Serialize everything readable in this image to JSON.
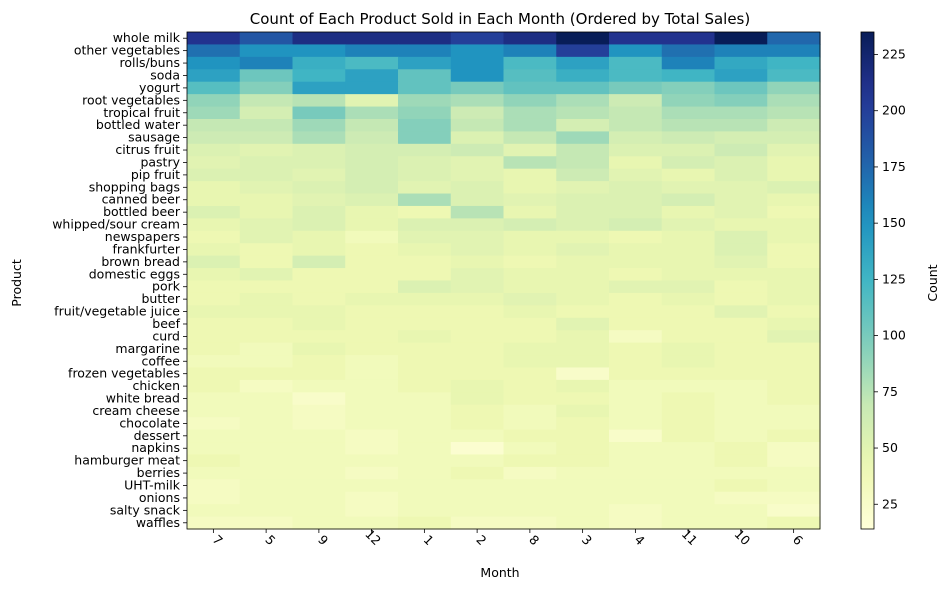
{
  "chart_data": {
    "type": "heatmap",
    "title": "Count of Each Product Sold in Each Month (Ordered by Total Sales)",
    "xlabel": "Month",
    "ylabel": "Product",
    "colorbar_label": "Count",
    "colormap": "YlGnBu",
    "value_range": [
      14,
      235
    ],
    "colorbar_ticks": [
      25,
      50,
      75,
      100,
      125,
      150,
      175,
      200,
      225
    ],
    "months": [
      "7",
      "5",
      "9",
      "12",
      "1",
      "2",
      "8",
      "3",
      "4",
      "11",
      "10",
      "6"
    ],
    "products": [
      "whole milk",
      "other vegetables",
      "rolls/buns",
      "soda",
      "yogurt",
      "root vegetables",
      "tropical fruit",
      "bottled water",
      "sausage",
      "citrus fruit",
      "pastry",
      "pip fruit",
      "shopping bags",
      "canned beer",
      "bottled beer",
      "whipped/sour cream",
      "newspapers",
      "frankfurter",
      "brown bread",
      "domestic eggs",
      "pork",
      "butter",
      "fruit/vegetable juice",
      "beef",
      "curd",
      "margarine",
      "coffee",
      "frozen vegetables",
      "chicken",
      "white bread",
      "cream cheese ",
      "chocolate",
      "dessert",
      "napkins",
      "hamburger meat",
      "berries",
      "UHT-milk",
      "onions",
      "salty snack",
      "waffles"
    ],
    "values": [
      [
        210,
        185,
        215,
        215,
        215,
        200,
        215,
        235,
        210,
        210,
        235,
        175
      ],
      [
        170,
        150,
        150,
        160,
        160,
        150,
        160,
        200,
        150,
        170,
        160,
        160
      ],
      [
        150,
        160,
        130,
        120,
        140,
        150,
        120,
        140,
        120,
        160,
        135,
        125
      ],
      [
        140,
        105,
        125,
        140,
        110,
        150,
        115,
        130,
        120,
        125,
        140,
        120
      ],
      [
        115,
        95,
        140,
        140,
        110,
        100,
        110,
        110,
        100,
        95,
        105,
        90
      ],
      [
        90,
        70,
        75,
        50,
        85,
        80,
        90,
        80,
        65,
        90,
        95,
        80
      ],
      [
        85,
        60,
        100,
        80,
        90,
        65,
        80,
        75,
        70,
        80,
        80,
        75
      ],
      [
        70,
        70,
        85,
        70,
        95,
        70,
        80,
        60,
        70,
        75,
        75,
        65
      ],
      [
        65,
        65,
        80,
        65,
        95,
        55,
        70,
        85,
        60,
        65,
        60,
        60
      ],
      [
        55,
        50,
        55,
        60,
        60,
        65,
        50,
        70,
        55,
        55,
        65,
        50
      ],
      [
        50,
        55,
        55,
        60,
        55,
        50,
        75,
        70,
        45,
        60,
        55,
        45
      ],
      [
        55,
        55,
        50,
        60,
        55,
        50,
        45,
        65,
        50,
        45,
        55,
        45
      ],
      [
        45,
        50,
        55,
        60,
        50,
        55,
        45,
        50,
        55,
        50,
        50,
        55
      ],
      [
        45,
        45,
        50,
        55,
        80,
        55,
        50,
        55,
        55,
        60,
        50,
        45
      ],
      [
        55,
        45,
        55,
        45,
        40,
        75,
        45,
        55,
        55,
        45,
        50,
        40
      ],
      [
        45,
        50,
        55,
        45,
        55,
        55,
        60,
        55,
        60,
        50,
        45,
        45
      ],
      [
        40,
        50,
        45,
        35,
        50,
        50,
        45,
        45,
        40,
        45,
        55,
        45
      ],
      [
        45,
        40,
        45,
        40,
        45,
        50,
        45,
        50,
        45,
        45,
        55,
        40
      ],
      [
        55,
        40,
        60,
        40,
        40,
        45,
        40,
        45,
        45,
        45,
        50,
        40
      ],
      [
        45,
        50,
        40,
        40,
        40,
        50,
        45,
        45,
        40,
        45,
        45,
        45
      ],
      [
        40,
        40,
        40,
        40,
        55,
        50,
        45,
        45,
        50,
        50,
        40,
        45
      ],
      [
        40,
        45,
        40,
        45,
        45,
        45,
        50,
        45,
        40,
        45,
        40,
        45
      ],
      [
        45,
        45,
        45,
        40,
        40,
        40,
        45,
        40,
        40,
        40,
        50,
        40
      ],
      [
        40,
        40,
        45,
        40,
        40,
        40,
        40,
        50,
        40,
        40,
        40,
        45
      ],
      [
        40,
        40,
        40,
        40,
        45,
        40,
        40,
        45,
        30,
        40,
        40,
        50
      ],
      [
        40,
        35,
        45,
        40,
        40,
        40,
        45,
        45,
        40,
        45,
        40,
        40
      ],
      [
        35,
        35,
        40,
        35,
        40,
        40,
        45,
        45,
        40,
        45,
        40,
        40
      ],
      [
        40,
        40,
        40,
        35,
        40,
        40,
        40,
        25,
        40,
        40,
        40,
        40
      ],
      [
        40,
        30,
        35,
        35,
        40,
        45,
        40,
        45,
        35,
        35,
        35,
        40
      ],
      [
        35,
        35,
        25,
        35,
        35,
        45,
        40,
        40,
        35,
        40,
        35,
        40
      ],
      [
        35,
        35,
        30,
        35,
        35,
        40,
        35,
        45,
        35,
        40,
        35,
        35
      ],
      [
        30,
        35,
        30,
        35,
        35,
        40,
        35,
        40,
        35,
        40,
        35,
        35
      ],
      [
        35,
        35,
        35,
        30,
        35,
        35,
        40,
        40,
        25,
        40,
        35,
        40
      ],
      [
        35,
        35,
        35,
        30,
        35,
        20,
        35,
        40,
        35,
        35,
        40,
        30
      ],
      [
        40,
        35,
        35,
        35,
        35,
        35,
        40,
        40,
        35,
        35,
        40,
        30
      ],
      [
        35,
        35,
        35,
        30,
        35,
        40,
        30,
        35,
        35,
        35,
        35,
        35
      ],
      [
        30,
        35,
        35,
        35,
        35,
        35,
        35,
        35,
        35,
        35,
        40,
        35
      ],
      [
        30,
        35,
        35,
        30,
        35,
        35,
        35,
        35,
        35,
        35,
        30,
        30
      ],
      [
        35,
        35,
        35,
        30,
        35,
        35,
        35,
        35,
        30,
        35,
        35,
        25
      ],
      [
        30,
        30,
        35,
        35,
        40,
        30,
        30,
        35,
        30,
        35,
        35,
        40
      ]
    ]
  }
}
